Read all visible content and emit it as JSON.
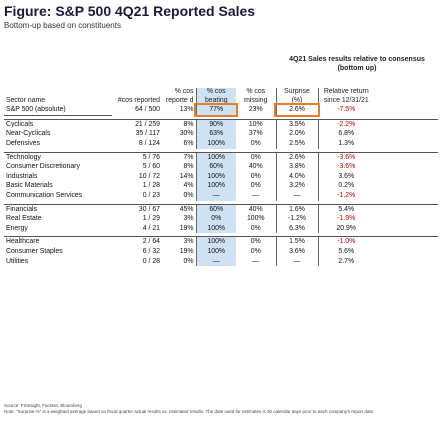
{
  "figure": {
    "title": "Figure: S&P 500 4Q21 Reported Sales",
    "subtitle": "Bottom-up based on constituents",
    "group_header": "4Q21 Sales results relative to consensus (bottom up)"
  },
  "columns": {
    "sector": "Sector name",
    "cos_reported": "#cos reported",
    "pct_reported": "% cos reporte d",
    "pct_beating": "% cos beating",
    "pct_missing": "% cos missing",
    "surprise": "Surprise (%)",
    "rel_return": "Relative return since 12/31/21"
  },
  "rows": [
    {
      "sector": "S&P 500 (absolute)",
      "cos": "64 / 500",
      "rep": "13%",
      "beat": "77%",
      "miss": "23%",
      "surp": "2.6%",
      "ret": "-7.5%",
      "group": "top"
    },
    {
      "sector": "Cyclicals",
      "cos": "21 / 259",
      "rep": "8%",
      "beat": "90%",
      "miss": "10%",
      "surp": "3.5%",
      "ret": "-2.2%",
      "group": "A",
      "first": true
    },
    {
      "sector": "Near-Cyclicals",
      "cos": "35 / 117",
      "rep": "30%",
      "beat": "63%",
      "miss": "37%",
      "surp": "2.0%",
      "ret": "6.8%",
      "group": "A"
    },
    {
      "sector": "Defensives",
      "cos": "8 / 124",
      "rep": "6%",
      "beat": "100%",
      "miss": "0%",
      "surp": "2.5%",
      "ret": "1.3%",
      "group": "A"
    },
    {
      "sector": "Technology",
      "cos": "5 / 76",
      "rep": "7%",
      "beat": "100%",
      "miss": "0%",
      "surp": "2.6%",
      "ret": "-3.6%",
      "group": "B",
      "first": true
    },
    {
      "sector": "Consumer Discretionary",
      "cos": "5 / 60",
      "rep": "8%",
      "beat": "60%",
      "miss": "40%",
      "surp": "3.8%",
      "ret": "-3.6%",
      "group": "B"
    },
    {
      "sector": "Industrials",
      "cos": "10 / 72",
      "rep": "14%",
      "beat": "100%",
      "miss": "0%",
      "surp": "4.0%",
      "ret": "3.6%",
      "group": "B"
    },
    {
      "sector": "Basic Materials",
      "cos": "1 / 28",
      "rep": "4%",
      "beat": "100%",
      "miss": "0%",
      "surp": "3.2%",
      "ret": "0.2%",
      "group": "B"
    },
    {
      "sector": "Communication Services",
      "cos": "0 / 23",
      "rep": "0%",
      "beat": "—",
      "miss": "—",
      "surp": "—",
      "ret": "-1.2%",
      "group": "B"
    },
    {
      "sector": "Financials",
      "cos": "30 / 67",
      "rep": "45%",
      "beat": "60%",
      "miss": "40%",
      "surp": "1.6%",
      "ret": "5.4%",
      "group": "C",
      "first": true
    },
    {
      "sector": "Real Estate",
      "cos": "1 / 29",
      "rep": "3%",
      "beat": "0%",
      "miss": "100%",
      "surp": "-1.2%",
      "ret": "-1.9%",
      "group": "C"
    },
    {
      "sector": "Energy",
      "cos": "4 / 21",
      "rep": "19%",
      "beat": "100%",
      "miss": "0%",
      "surp": "6.3%",
      "ret": "20.9%",
      "group": "C"
    },
    {
      "sector": "Healthcare",
      "cos": "2 / 64",
      "rep": "3%",
      "beat": "100%",
      "miss": "0%",
      "surp": "1.5%",
      "ret": "-1.0%",
      "group": "D",
      "first": true
    },
    {
      "sector": "Consumer Staples",
      "cos": "6 / 32",
      "rep": "19%",
      "beat": "100%",
      "miss": "0%",
      "surp": "3.6%",
      "ret": "5.6%",
      "group": "D"
    },
    {
      "sector": "Utilities",
      "cos": "0 / 28",
      "rep": "0%",
      "beat": "—",
      "miss": "—",
      "surp": "—",
      "ret": "2.7%",
      "group": "D"
    }
  ],
  "source": "Source: FSInsight, FactSet, Bloomberg",
  "note": "Note: \"Surprise %\" is a weighted average based on fiscal quarter actual results vs. estimated results. The date used for estimates is 30 calendar days prior to each company's report date.",
  "colors": {
    "highlight_box": "#ea7a2e",
    "beat_column": "#cfe2f3",
    "negative": "#c00000"
  }
}
